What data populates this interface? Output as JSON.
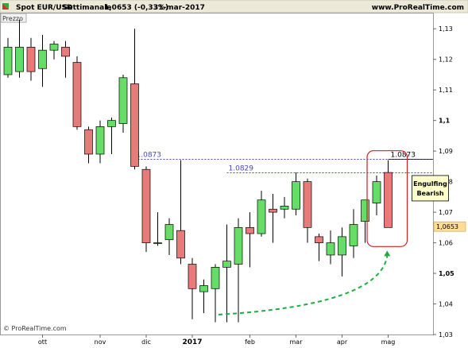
{
  "header": {
    "instrument": "Spot EUR/USD",
    "timeframe": "Settimanale",
    "quote": "1,0653 (-0,33%)",
    "date": "31-mar-2017",
    "site": "www.ProRealTime.com"
  },
  "panel_label": "Prezzo",
  "copyright": "© ProRealTime.com",
  "colors": {
    "bull": "#66dd66",
    "bear": "#e87a7a",
    "level_line": "#4444cc",
    "highlight": "#cc2222",
    "arrow": "#22aa44",
    "note_bg": "#ffffcc",
    "price_tag": "#ffdd99"
  },
  "chart_data": {
    "type": "candlestick",
    "ylim": [
      1.03,
      1.135
    ],
    "y_ticks": [
      "1,13",
      "1,12",
      "1,11",
      "1,1",
      "1,09",
      "1,08",
      "1,07",
      "1,06",
      "1,05",
      "1,04",
      "1,03"
    ],
    "y_tick_values": [
      1.13,
      1.12,
      1.11,
      1.1,
      1.09,
      1.08,
      1.07,
      1.06,
      1.05,
      1.04,
      1.03
    ],
    "y_bold_ticks": [
      "1,1",
      "1,05"
    ],
    "x_labels": [
      {
        "label": "ott",
        "index": 3
      },
      {
        "label": "nov",
        "index": 8
      },
      {
        "label": "dic",
        "index": 12
      },
      {
        "label": "2017",
        "index": 16,
        "bold": true
      },
      {
        "label": "feb",
        "index": 21
      },
      {
        "label": "mar",
        "index": 25
      },
      {
        "label": "apr",
        "index": 29
      },
      {
        "label": "mag",
        "index": 33
      }
    ],
    "candles": [
      {
        "o": 1.115,
        "h": 1.127,
        "l": 1.114,
        "c": 1.124
      },
      {
        "o": 1.116,
        "h": 1.133,
        "l": 1.114,
        "c": 1.124
      },
      {
        "o": 1.124,
        "h": 1.127,
        "l": 1.113,
        "c": 1.116
      },
      {
        "o": 1.117,
        "h": 1.128,
        "l": 1.111,
        "c": 1.123
      },
      {
        "o": 1.123,
        "h": 1.126,
        "l": 1.12,
        "c": 1.125
      },
      {
        "o": 1.124,
        "h": 1.126,
        "l": 1.114,
        "c": 1.121
      },
      {
        "o": 1.119,
        "h": 1.121,
        "l": 1.097,
        "c": 1.098
      },
      {
        "o": 1.097,
        "h": 1.098,
        "l": 1.086,
        "c": 1.089
      },
      {
        "o": 1.089,
        "h": 1.1,
        "l": 1.086,
        "c": 1.098
      },
      {
        "o": 1.098,
        "h": 1.101,
        "l": 1.089,
        "c": 1.1
      },
      {
        "o": 1.099,
        "h": 1.115,
        "l": 1.096,
        "c": 1.114
      },
      {
        "o": 1.112,
        "h": 1.13,
        "l": 1.084,
        "c": 1.085
      },
      {
        "o": 1.084,
        "h": 1.085,
        "l": 1.057,
        "c": 1.06
      },
      {
        "o": 1.06,
        "h": 1.07,
        "l": 1.059,
        "c": 1.06
      },
      {
        "o": 1.061,
        "h": 1.068,
        "l": 1.056,
        "c": 1.066
      },
      {
        "o": 1.064,
        "h": 1.087,
        "l": 1.053,
        "c": 1.055
      },
      {
        "o": 1.053,
        "h": 1.055,
        "l": 1.035,
        "c": 1.045
      },
      {
        "o": 1.044,
        "h": 1.048,
        "l": 1.037,
        "c": 1.046
      },
      {
        "o": 1.045,
        "h": 1.053,
        "l": 1.034,
        "c": 1.052
      },
      {
        "o": 1.052,
        "h": 1.066,
        "l": 1.034,
        "c": 1.054
      },
      {
        "o": 1.053,
        "h": 1.068,
        "l": 1.034,
        "c": 1.065
      },
      {
        "o": 1.065,
        "h": 1.07,
        "l": 1.052,
        "c": 1.063
      },
      {
        "o": 1.063,
        "h": 1.077,
        "l": 1.062,
        "c": 1.074
      },
      {
        "o": 1.071,
        "h": 1.076,
        "l": 1.06,
        "c": 1.07
      },
      {
        "o": 1.071,
        "h": 1.075,
        "l": 1.068,
        "c": 1.072
      },
      {
        "o": 1.071,
        "h": 1.083,
        "l": 1.069,
        "c": 1.08
      },
      {
        "o": 1.08,
        "h": 1.081,
        "l": 1.06,
        "c": 1.065
      },
      {
        "o": 1.062,
        "h": 1.063,
        "l": 1.054,
        "c": 1.06
      },
      {
        "o": 1.056,
        "h": 1.064,
        "l": 1.053,
        "c": 1.06
      },
      {
        "o": 1.056,
        "h": 1.065,
        "l": 1.049,
        "c": 1.062
      },
      {
        "o": 1.059,
        "h": 1.071,
        "l": 1.055,
        "c": 1.066
      },
      {
        "o": 1.067,
        "h": 1.074,
        "l": 1.06,
        "c": 1.074
      },
      {
        "o": 1.073,
        "h": 1.082,
        "l": 1.069,
        "c": 1.08
      },
      {
        "o": 1.083,
        "h": 1.087,
        "l": 1.065,
        "c": 1.065
      }
    ],
    "levels": [
      {
        "value": 1.0873,
        "label": "1.0873",
        "from_index": 11
      },
      {
        "value": 1.0829,
        "label": "1.0829",
        "from_index": 19
      }
    ],
    "last_level": {
      "value": 1.0873,
      "label": "1.0873"
    },
    "current_price": {
      "value": 1.0653,
      "label": "1,0653"
    },
    "annotation": {
      "text_line1": "Engulfing",
      "text_line2": "Bearish"
    }
  }
}
